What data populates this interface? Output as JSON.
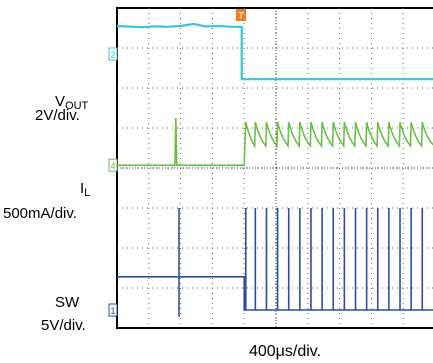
{
  "chart_data": {
    "type": "line",
    "title": "",
    "xlabel": "400μs/div.",
    "x_divisions": 10,
    "y_divisions": 8,
    "grid": true,
    "trigger_marker": {
      "label": "T",
      "x_div": 3.9,
      "color": "#f47c20"
    },
    "channels": [
      {
        "id": "2",
        "label_main": "V",
        "label_sub": "OUT",
        "scale": "2V/div.",
        "color": "#3ec4d6",
        "ground_marker_y_div": 1.15,
        "x_div": [
          0,
          0.8,
          1.2,
          1.6,
          2.0,
          2.4,
          2.8,
          3.2,
          3.6,
          3.92,
          3.92,
          5.0,
          6.0,
          7.0,
          8.0,
          9.0,
          10.0
        ],
        "y_div": [
          0.45,
          0.48,
          0.46,
          0.47,
          0.45,
          0.4,
          0.46,
          0.45,
          0.47,
          0.47,
          1.78,
          1.78,
          1.78,
          1.78,
          1.78,
          1.78,
          1.78
        ]
      },
      {
        "id": "4",
        "label_main": "I",
        "label_sub": "L",
        "scale": "500mA/div.",
        "color": "#6cc04a",
        "ground_marker_y_div": 3.93,
        "baseline_before_div": 3.93,
        "baseline_after_div": 3.3,
        "spike_peak_div": 2.75,
        "spikes_before_x_div": [
          1.85
        ],
        "spikes_after_x_div": [
          4.05,
          4.35,
          4.7,
          5.05,
          5.4,
          5.75,
          6.1,
          6.45,
          6.8,
          7.15,
          7.5,
          7.85,
          8.2,
          8.55,
          8.9,
          9.25,
          9.6
        ]
      },
      {
        "id": "1",
        "label_main": "SW",
        "label_sub": "",
        "scale": "5V/div.",
        "color": "#2a4fa0",
        "ground_marker_y_div": 7.55,
        "baseline_before_div": 6.72,
        "baseline_after_div": 7.55,
        "pulse_top_div": 5.0,
        "pulses_before_x_div": [
          1.95
        ],
        "pulses_after_x_div": [
          4.05,
          4.35,
          4.7,
          5.05,
          5.4,
          5.75,
          6.1,
          6.45,
          6.8,
          7.15,
          7.5,
          7.85,
          8.2,
          8.55,
          8.9,
          9.25,
          9.6
        ]
      }
    ]
  }
}
